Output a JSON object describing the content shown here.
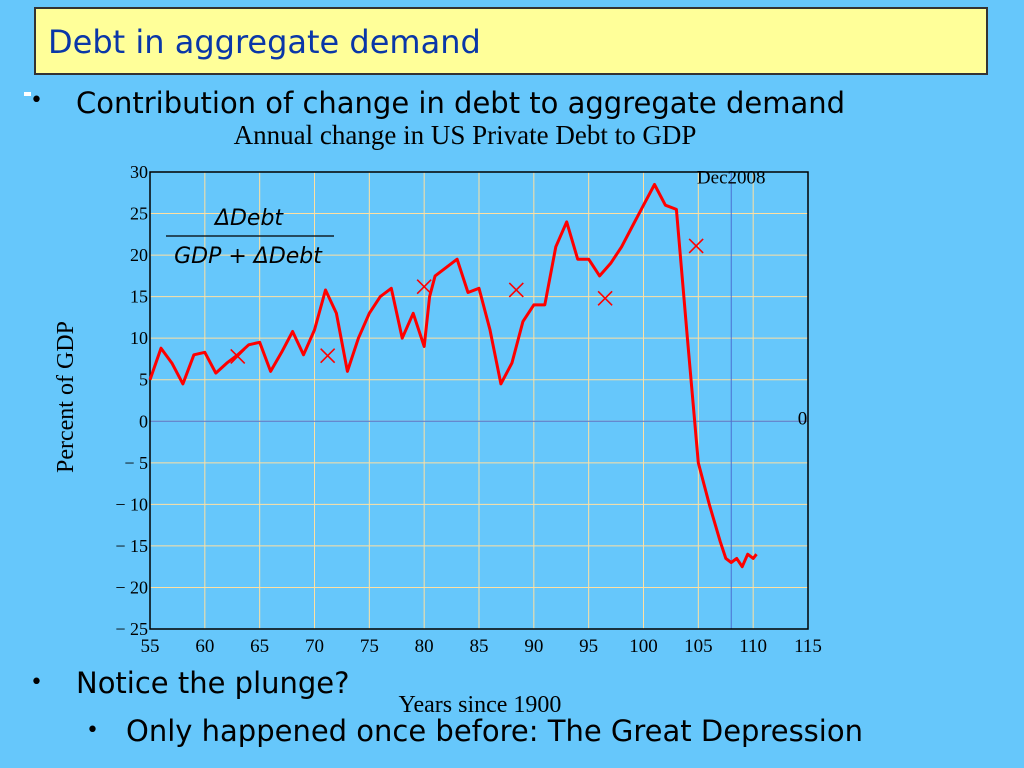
{
  "slide": {
    "title": "Debt in aggregate demand",
    "bullets": [
      "Contribution of change in debt to aggregate demand",
      "Notice the plunge?",
      "Only happened once before: The Great Depression"
    ]
  },
  "colors": {
    "background": "#66c7fb",
    "title_fill": "#ffff99",
    "title_text": "#0a37a8",
    "series_line": "#ff0000",
    "grid": "#ffe0a0",
    "plot_bg": "#66c7fb"
  },
  "chart_data": {
    "type": "line",
    "title": "Annual change in US Private Debt to GDP",
    "xlabel": "Years since 1900",
    "ylabel": "Percent of GDP",
    "xlim": [
      55,
      115
    ],
    "ylim": [
      -25,
      30
    ],
    "xticks": [
      "55",
      "60",
      "65",
      "70",
      "75",
      "80",
      "85",
      "90",
      "95",
      "100",
      "105",
      "110",
      "115"
    ],
    "yticks": [
      "30",
      "25",
      "20",
      "15",
      "10",
      "5",
      "0",
      "− 5",
      "− 10",
      "− 15",
      "− 20",
      "− 25"
    ],
    "grid": true,
    "formula": {
      "numerator": "ΔDebt",
      "denominator": "GDP + ΔDebt"
    },
    "annotations": [
      {
        "text": "Dec2008",
        "x": 108,
        "y": 29
      },
      {
        "text": "0",
        "x": 114.5,
        "y": 0
      }
    ],
    "reference_lines": [
      {
        "orientation": "horizontal",
        "y": 0
      },
      {
        "orientation": "vertical",
        "x": 108
      }
    ],
    "markers": [
      {
        "x": 63,
        "y": 7.8
      },
      {
        "x": 71.2,
        "y": 7.9
      },
      {
        "x": 80,
        "y": 16.2
      },
      {
        "x": 88.4,
        "y": 15.8
      },
      {
        "x": 96.5,
        "y": 14.8
      },
      {
        "x": 104.8,
        "y": 21.1
      }
    ],
    "series": [
      {
        "x": [
          55,
          56,
          57,
          58,
          59,
          60,
          61,
          62,
          63,
          64,
          65,
          66,
          67,
          68,
          69,
          70,
          71,
          72,
          73,
          74,
          75,
          76,
          77,
          78,
          79,
          80,
          80.5,
          81,
          82,
          83,
          84,
          85,
          86,
          87,
          88,
          89,
          90,
          91,
          92,
          93,
          94,
          95,
          96,
          97,
          98,
          99,
          100,
          101,
          102,
          103,
          104,
          105,
          106,
          107,
          107.5,
          108,
          108.5,
          109,
          109.5,
          110,
          110.3
        ],
        "values": [
          5.0,
          8.8,
          7.0,
          4.5,
          8.0,
          8.3,
          5.8,
          7.0,
          8.0,
          9.2,
          9.5,
          6.0,
          8.3,
          10.8,
          8.0,
          11.0,
          15.8,
          13.0,
          6.0,
          10.0,
          13.0,
          15.0,
          16.0,
          10.0,
          13.0,
          9.0,
          15.0,
          17.5,
          18.5,
          19.5,
          15.5,
          16.0,
          11.0,
          4.5,
          7.0,
          12.0,
          14.0,
          14.0,
          21.0,
          24.0,
          19.5,
          19.5,
          17.5,
          19.0,
          21.0,
          23.5,
          26.0,
          28.5,
          26.0,
          25.5,
          10.0,
          -5.0,
          -10.0,
          -14.5,
          -16.5,
          -17.0,
          -16.5,
          -17.5,
          -16.0,
          -16.5,
          -16.0
        ]
      }
    ]
  }
}
